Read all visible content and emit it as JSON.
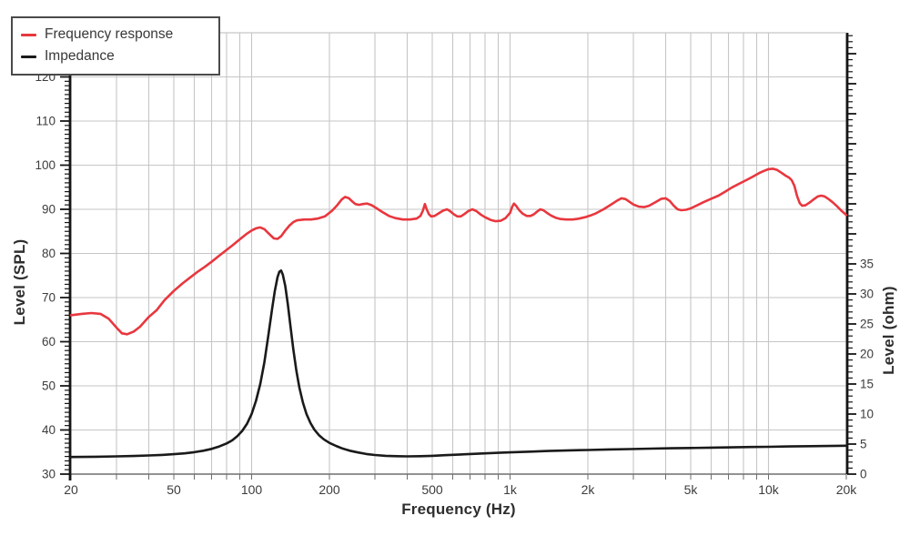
{
  "chart_data": {
    "type": "line",
    "title": "",
    "grid": true,
    "legend_position": "top-left",
    "x_axis": {
      "title": "Frequency (Hz)",
      "scale": "log",
      "min": 20,
      "max": 20000,
      "ticks": [
        {
          "v": 20,
          "label": "20"
        },
        {
          "v": 50,
          "label": "50"
        },
        {
          "v": 100,
          "label": "100"
        },
        {
          "v": 200,
          "label": "200"
        },
        {
          "v": 500,
          "label": "500"
        },
        {
          "v": 1000,
          "label": "1k"
        },
        {
          "v": 2000,
          "label": "2k"
        },
        {
          "v": 5000,
          "label": "5k"
        },
        {
          "v": 10000,
          "label": "10k"
        },
        {
          "v": 20000,
          "label": "20k"
        }
      ]
    },
    "y_left_axis": {
      "title": "Level (SPL)",
      "min": 30,
      "max": 130,
      "major_tick_step": 10,
      "minor_tick_step": 1,
      "tick_labels": [
        30,
        40,
        50,
        60,
        70,
        80,
        90,
        100,
        110,
        120
      ]
    },
    "y_right_axis": {
      "title": "Level (ohm)",
      "min": 0,
      "max": 35,
      "major_tick_step": 5,
      "minor_tick_step": 1,
      "tick_labels": [
        0,
        5,
        10,
        15,
        20,
        25,
        30,
        35
      ]
    },
    "series": [
      {
        "name": "Frequency response",
        "color": "#e8373e",
        "y_axis": "left",
        "points": [
          [
            20,
            66
          ],
          [
            22,
            66.3
          ],
          [
            24,
            66.5
          ],
          [
            26,
            66.3
          ],
          [
            28,
            65.2
          ],
          [
            30,
            63.2
          ],
          [
            31.5,
            61.9
          ],
          [
            33,
            61.7
          ],
          [
            35,
            62.3
          ],
          [
            37,
            63.4
          ],
          [
            40,
            65.6
          ],
          [
            43,
            67.2
          ],
          [
            46,
            69.4
          ],
          [
            50,
            71.5
          ],
          [
            54,
            73.2
          ],
          [
            58,
            74.6
          ],
          [
            62,
            75.9
          ],
          [
            66,
            77
          ],
          [
            70,
            78.1
          ],
          [
            75,
            79.5
          ],
          [
            80,
            80.8
          ],
          [
            85,
            82
          ],
          [
            90,
            83.2
          ],
          [
            95,
            84.3
          ],
          [
            100,
            85.2
          ],
          [
            104,
            85.7
          ],
          [
            108,
            85.9
          ],
          [
            112,
            85.5
          ],
          [
            117,
            84.4
          ],
          [
            122,
            83.4
          ],
          [
            126,
            83.3
          ],
          [
            130,
            83.9
          ],
          [
            135,
            85.2
          ],
          [
            140,
            86.3
          ],
          [
            145,
            87.1
          ],
          [
            150,
            87.5
          ],
          [
            160,
            87.7
          ],
          [
            170,
            87.7
          ],
          [
            180,
            87.9
          ],
          [
            192,
            88.4
          ],
          [
            205,
            89.7
          ],
          [
            215,
            91
          ],
          [
            223,
            92.2
          ],
          [
            230,
            92.8
          ],
          [
            238,
            92.5
          ],
          [
            245,
            91.8
          ],
          [
            252,
            91.2
          ],
          [
            260,
            91
          ],
          [
            270,
            91.2
          ],
          [
            280,
            91.3
          ],
          [
            292,
            90.9
          ],
          [
            305,
            90.2
          ],
          [
            320,
            89.4
          ],
          [
            340,
            88.5
          ],
          [
            360,
            88
          ],
          [
            385,
            87.7
          ],
          [
            410,
            87.7
          ],
          [
            435,
            87.9
          ],
          [
            450,
            88.5
          ],
          [
            460,
            89.7
          ],
          [
            468,
            91.2
          ],
          [
            476,
            90
          ],
          [
            485,
            88.9
          ],
          [
            495,
            88.4
          ],
          [
            510,
            88.5
          ],
          [
            530,
            89.1
          ],
          [
            550,
            89.7
          ],
          [
            570,
            90
          ],
          [
            585,
            89.6
          ],
          [
            605,
            88.9
          ],
          [
            625,
            88.4
          ],
          [
            645,
            88.4
          ],
          [
            665,
            88.9
          ],
          [
            690,
            89.6
          ],
          [
            715,
            90
          ],
          [
            740,
            89.6
          ],
          [
            770,
            88.8
          ],
          [
            800,
            88.2
          ],
          [
            840,
            87.6
          ],
          [
            880,
            87.3
          ],
          [
            920,
            87.4
          ],
          [
            960,
            88
          ],
          [
            1000,
            89.2
          ],
          [
            1020,
            90.6
          ],
          [
            1035,
            91.3
          ],
          [
            1055,
            90.8
          ],
          [
            1085,
            89.8
          ],
          [
            1120,
            89
          ],
          [
            1160,
            88.5
          ],
          [
            1200,
            88.5
          ],
          [
            1240,
            88.9
          ],
          [
            1280,
            89.6
          ],
          [
            1310,
            90
          ],
          [
            1345,
            89.8
          ],
          [
            1390,
            89.2
          ],
          [
            1440,
            88.6
          ],
          [
            1500,
            88.1
          ],
          [
            1570,
            87.8
          ],
          [
            1650,
            87.7
          ],
          [
            1750,
            87.7
          ],
          [
            1850,
            87.9
          ],
          [
            1950,
            88.2
          ],
          [
            2050,
            88.6
          ],
          [
            2150,
            89.1
          ],
          [
            2300,
            90
          ],
          [
            2450,
            91
          ],
          [
            2600,
            92
          ],
          [
            2700,
            92.5
          ],
          [
            2800,
            92.3
          ],
          [
            2900,
            91.7
          ],
          [
            3000,
            91.1
          ],
          [
            3150,
            90.6
          ],
          [
            3300,
            90.5
          ],
          [
            3450,
            90.8
          ],
          [
            3650,
            91.6
          ],
          [
            3850,
            92.4
          ],
          [
            4000,
            92.5
          ],
          [
            4150,
            91.9
          ],
          [
            4300,
            90.8
          ],
          [
            4450,
            90
          ],
          [
            4600,
            89.8
          ],
          [
            4800,
            89.9
          ],
          [
            5000,
            90.2
          ],
          [
            5300,
            90.9
          ],
          [
            5600,
            91.6
          ],
          [
            6000,
            92.4
          ],
          [
            6400,
            93.1
          ],
          [
            6800,
            94
          ],
          [
            7200,
            94.9
          ],
          [
            7700,
            95.8
          ],
          [
            8200,
            96.6
          ],
          [
            8700,
            97.4
          ],
          [
            9200,
            98.2
          ],
          [
            9600,
            98.7
          ],
          [
            10000,
            99.1
          ],
          [
            10400,
            99.2
          ],
          [
            10800,
            98.9
          ],
          [
            11200,
            98.3
          ],
          [
            11600,
            97.7
          ],
          [
            12000,
            97.2
          ],
          [
            12300,
            96.6
          ],
          [
            12600,
            95.3
          ],
          [
            12900,
            93
          ],
          [
            13200,
            91.4
          ],
          [
            13500,
            90.8
          ],
          [
            13900,
            90.9
          ],
          [
            14400,
            91.5
          ],
          [
            15000,
            92.3
          ],
          [
            15500,
            92.9
          ],
          [
            16000,
            93.1
          ],
          [
            16500,
            92.9
          ],
          [
            17000,
            92.4
          ],
          [
            17700,
            91.6
          ],
          [
            18400,
            90.7
          ],
          [
            19200,
            89.6
          ],
          [
            20000,
            88.7
          ]
        ]
      },
      {
        "name": "Impedance",
        "color": "#1a1a1a",
        "y_axis": "right",
        "points": [
          [
            20,
            2.85
          ],
          [
            25,
            2.9
          ],
          [
            30,
            2.95
          ],
          [
            35,
            3.02
          ],
          [
            40,
            3.1
          ],
          [
            45,
            3.2
          ],
          [
            50,
            3.32
          ],
          [
            55,
            3.46
          ],
          [
            60,
            3.65
          ],
          [
            65,
            3.9
          ],
          [
            70,
            4.2
          ],
          [
            75,
            4.6
          ],
          [
            80,
            5.1
          ],
          [
            84,
            5.6
          ],
          [
            88,
            6.3
          ],
          [
            92,
            7.2
          ],
          [
            96,
            8.4
          ],
          [
            100,
            10
          ],
          [
            104,
            12.2
          ],
          [
            108,
            15
          ],
          [
            112,
            18.6
          ],
          [
            116,
            23
          ],
          [
            120,
            27.5
          ],
          [
            123,
            30.5
          ],
          [
            126,
            32.8
          ],
          [
            128,
            33.7
          ],
          [
            130,
            33.9
          ],
          [
            132,
            33.2
          ],
          [
            135,
            31.3
          ],
          [
            138,
            28.4
          ],
          [
            141,
            25
          ],
          [
            145,
            20.8
          ],
          [
            149,
            17.2
          ],
          [
            153,
            14.4
          ],
          [
            158,
            11.9
          ],
          [
            163,
            10
          ],
          [
            169,
            8.5
          ],
          [
            175,
            7.4
          ],
          [
            182,
            6.5
          ],
          [
            190,
            5.8
          ],
          [
            200,
            5.2
          ],
          [
            212,
            4.7
          ],
          [
            225,
            4.25
          ],
          [
            240,
            3.9
          ],
          [
            258,
            3.6
          ],
          [
            278,
            3.35
          ],
          [
            300,
            3.18
          ],
          [
            330,
            3.05
          ],
          [
            365,
            2.98
          ],
          [
            400,
            2.96
          ],
          [
            450,
            2.98
          ],
          [
            500,
            3.05
          ],
          [
            560,
            3.15
          ],
          [
            630,
            3.25
          ],
          [
            700,
            3.35
          ],
          [
            800,
            3.45
          ],
          [
            900,
            3.55
          ],
          [
            1000,
            3.62
          ],
          [
            1200,
            3.75
          ],
          [
            1400,
            3.85
          ],
          [
            1700,
            3.95
          ],
          [
            2000,
            4.02
          ],
          [
            2400,
            4.1
          ],
          [
            2900,
            4.17
          ],
          [
            3500,
            4.24
          ],
          [
            4200,
            4.3
          ],
          [
            5000,
            4.35
          ],
          [
            6000,
            4.41
          ],
          [
            7200,
            4.46
          ],
          [
            8600,
            4.51
          ],
          [
            10000,
            4.55
          ],
          [
            12000,
            4.6
          ],
          [
            14500,
            4.65
          ],
          [
            17000,
            4.68
          ],
          [
            20000,
            4.72
          ]
        ]
      }
    ],
    "colors": {
      "grid": "#c6c6c6",
      "axis": "#161616",
      "bottom_axis": "#6e6e6e",
      "tick_text": "#3c3c3c"
    }
  }
}
